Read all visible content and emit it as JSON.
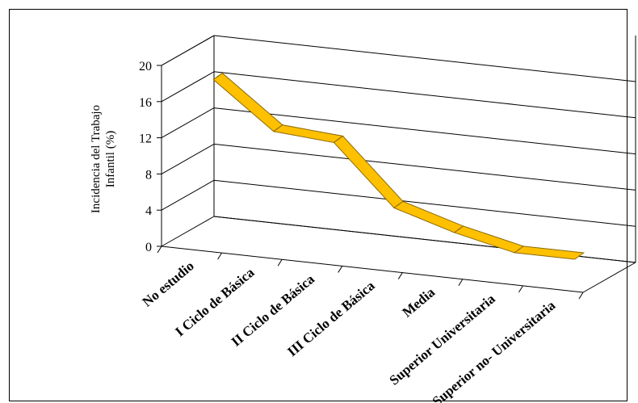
{
  "chart_data": {
    "type": "line",
    "style": "3d-ribbon",
    "categories": [
      "No estudio",
      "I Ciclo de Básica",
      "II Ciclo de Básica",
      "III Ciclo de Básica",
      "Media",
      "Superior Universitaria",
      "Superior no- Universitaria"
    ],
    "values": [
      17.5,
      12.5,
      12,
      5.5,
      3.5,
      2,
      2
    ],
    "title": "",
    "ylabel_line1": "Incidencia del Trabajo",
    "ylabel_line2": "Infantil  (%)",
    "xlabel": "",
    "ylim": [
      0,
      20
    ],
    "yticks": [
      0,
      4,
      8,
      12,
      16,
      20
    ],
    "grid": true,
    "legend": "none",
    "series_color": "#FFC000",
    "series_edge_color": "#8B6A00"
  }
}
